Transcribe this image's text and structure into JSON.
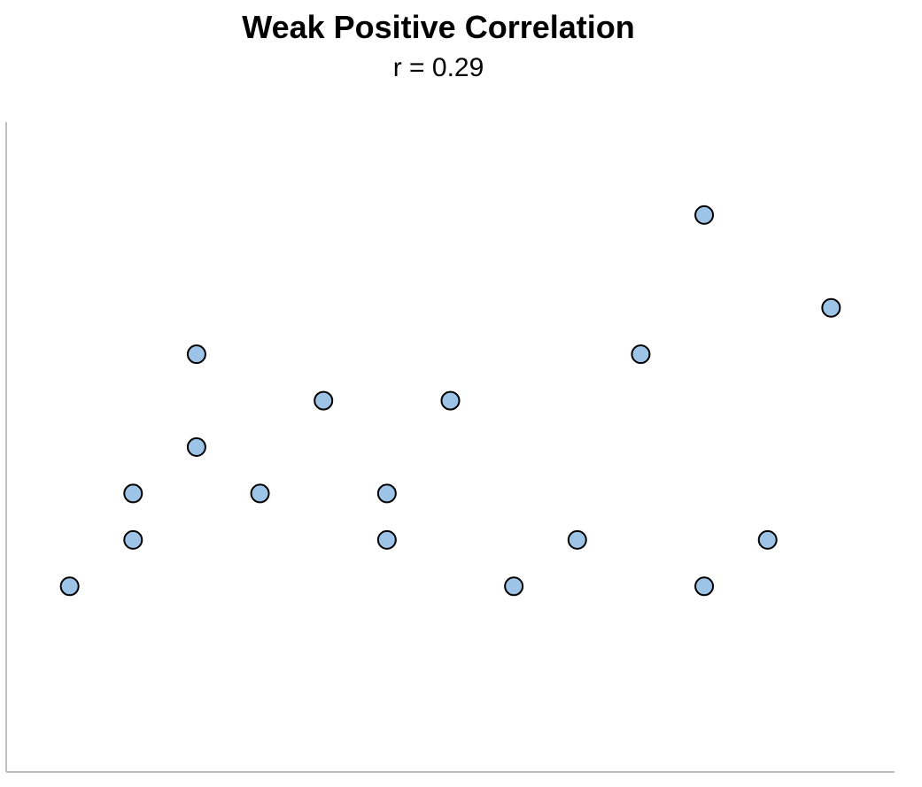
{
  "chart_data": {
    "type": "scatter",
    "title": "Weak Positive Correlation",
    "subtitle": "r = 0.29",
    "xlabel": "",
    "ylabel": "",
    "xlim": [
      0,
      14
    ],
    "ylim": [
      0,
      14
    ],
    "grid": false,
    "axes_tick_labels": false,
    "marker_fill": "#9DC3E6",
    "marker_edge": "#000000",
    "axis_color": "#BFBFBF",
    "points": [
      {
        "x": 1,
        "y": 4
      },
      {
        "x": 2,
        "y": 5
      },
      {
        "x": 2,
        "y": 6
      },
      {
        "x": 3,
        "y": 7
      },
      {
        "x": 3,
        "y": 9
      },
      {
        "x": 4,
        "y": 6
      },
      {
        "x": 5,
        "y": 8
      },
      {
        "x": 6,
        "y": 5
      },
      {
        "x": 6,
        "y": 6
      },
      {
        "x": 7,
        "y": 8
      },
      {
        "x": 8,
        "y": 4
      },
      {
        "x": 9,
        "y": 5
      },
      {
        "x": 10,
        "y": 9
      },
      {
        "x": 11,
        "y": 4
      },
      {
        "x": 11,
        "y": 12
      },
      {
        "x": 12,
        "y": 5
      },
      {
        "x": 13,
        "y": 10
      }
    ]
  }
}
